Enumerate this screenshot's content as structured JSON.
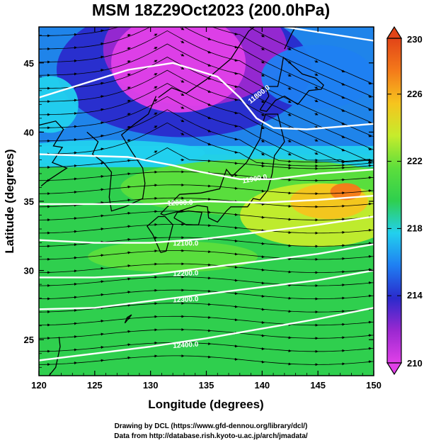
{
  "title": "MSM 18Z29Oct2023 (200.0hPa)",
  "chart_data": {
    "type": "heatmap",
    "title": "MSM 18Z29Oct2023 (200.0hPa)",
    "xlabel": "Longitude (degrees)",
    "ylabel": "Latitude  (degrees)",
    "xlim": [
      120,
      150
    ],
    "ylim": [
      22.4,
      47.6
    ],
    "xticks": [
      "120",
      "125",
      "130",
      "135",
      "140",
      "145",
      "150"
    ],
    "yticks": [
      "25",
      "30",
      "35",
      "40",
      "45"
    ],
    "colorbar": {
      "min": 210,
      "max": 230,
      "ticks": [
        "210",
        "214",
        "218",
        "222",
        "226",
        "230"
      ],
      "palette": [
        "#e040e8",
        "#9a28d0",
        "#2a2acc",
        "#1f7ff2",
        "#22d0ee",
        "#2fcf4e",
        "#5cde3c",
        "#c6ec2c",
        "#f6c41e",
        "#f47a1a",
        "#e24418"
      ]
    },
    "contours": [
      {
        "label": "11800.0",
        "value": 11800
      },
      {
        "label": "11900.0",
        "value": 11900
      },
      {
        "label": "12000.0",
        "value": 12000
      },
      {
        "label": "12100.0",
        "value": 12100
      },
      {
        "label": "12200.0",
        "value": 12200
      },
      {
        "label": "12300.0",
        "value": 12300
      },
      {
        "label": "12400.0",
        "value": 12400
      }
    ],
    "grid": false
  },
  "credits": {
    "line1": "Drawing by DCL (https://www.gfd-dennou.org/library/dcl/)",
    "line2": "Data from http://database.rish.kyoto-u.ac.jp/arch/jmadata/"
  }
}
